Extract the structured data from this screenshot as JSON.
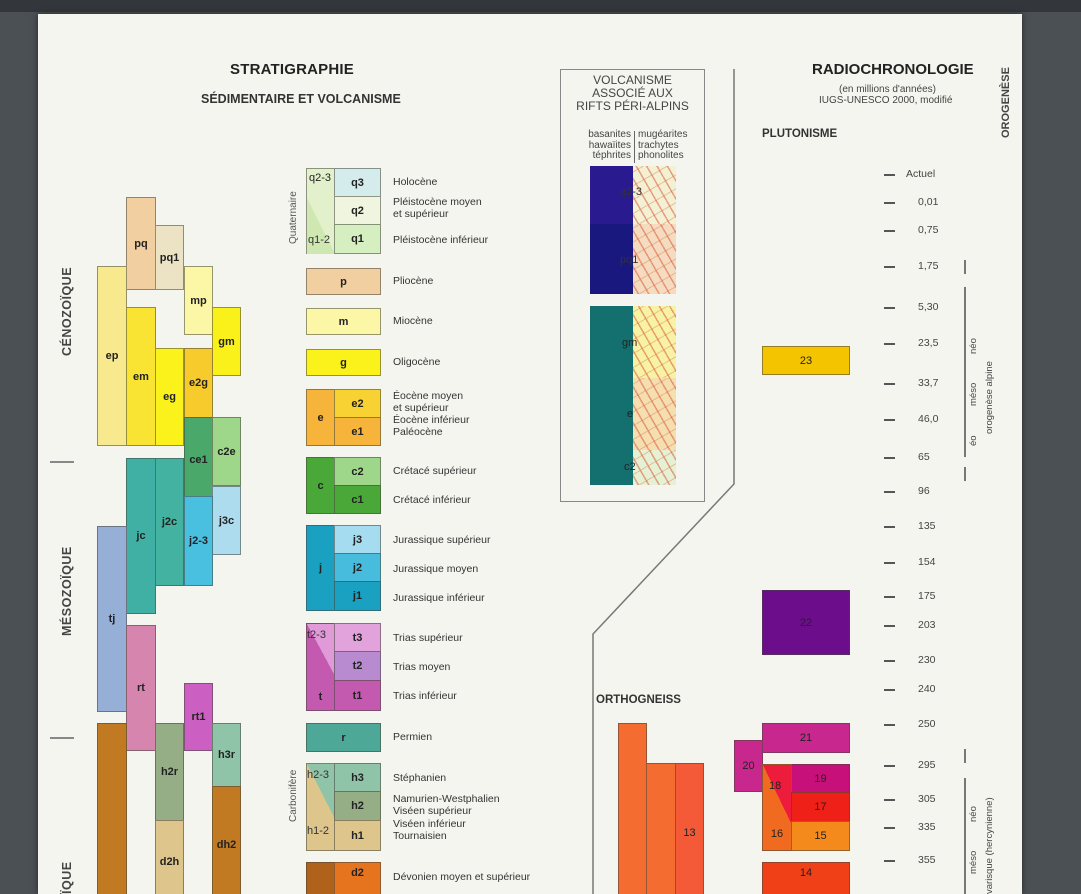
{
  "header": {
    "title": "STRATIGRAPHIE",
    "subtitle": "SÉDIMENTAIRE ET VOLCANISME"
  },
  "eras": {
    "cenozoic": "CÉNOZOÏQUE",
    "mesozoic": "MÉSOZOÏQUE",
    "paleozoic_partial": "ÏQUE"
  },
  "columns": [
    {
      "code": "pq",
      "color": "#f2cfa0"
    },
    {
      "code": "pq1",
      "color": "#ece2c4"
    },
    {
      "code": "ep",
      "color": "#f8e88e"
    },
    {
      "code": "mp",
      "color": "#fbf7a6"
    },
    {
      "code": "em",
      "color": "#f9e434"
    },
    {
      "code": "gm",
      "color": "#fbf11a"
    },
    {
      "code": "eg",
      "color": "#fbf21c"
    },
    {
      "code": "e2g",
      "color": "#f6cb2b"
    },
    {
      "code": "ce1",
      "color": "#4aa86a"
    },
    {
      "code": "c2e",
      "color": "#9ed68a"
    },
    {
      "code": "jc",
      "color": "#40b0a4"
    },
    {
      "code": "j2c",
      "color": "#44b2a0"
    },
    {
      "code": "j3c",
      "color": "#acdcee"
    },
    {
      "code": "j2-3",
      "color": "#4ac0e0"
    },
    {
      "code": "tj",
      "color": "#96afd6"
    },
    {
      "code": "rt",
      "color": "#d585ae"
    },
    {
      "code": "rt1",
      "color": "#cc5fc2"
    },
    {
      "code": "h3r",
      "color": "#8fc4a8"
    },
    {
      "code": "h2r",
      "color": "#96ae86"
    },
    {
      "code": "dh2",
      "color": "#c17a22"
    },
    {
      "code": "d2h",
      "color": "#ddc58c"
    }
  ],
  "legend": {
    "quaternary_label": "Quaternaire",
    "carboniferous_label": "Carbonifère",
    "items": [
      {
        "code": "q3",
        "group": "q2-3",
        "label": "Holocène"
      },
      {
        "code": "q2",
        "label": "Pléistocène moyen\net supérieur"
      },
      {
        "code": "q1",
        "group": "q1-2",
        "label": "Pléistocène inférieur"
      },
      {
        "code": "p",
        "label": "Pliocène"
      },
      {
        "code": "m",
        "label": "Miocène"
      },
      {
        "code": "g",
        "label": "Oligocène"
      },
      {
        "code": "e2",
        "group": "e",
        "label": "Éocène moyen\net supérieur"
      },
      {
        "code": "e1",
        "label": "Éocène inférieur\nPaléocène"
      },
      {
        "code": "c2",
        "group": "c",
        "label": "Crétacé supérieur"
      },
      {
        "code": "c1",
        "label": "Crétacé inférieur"
      },
      {
        "code": "j3",
        "group": "j",
        "label": "Jurassique supérieur"
      },
      {
        "code": "j2",
        "label": "Jurassique moyen"
      },
      {
        "code": "j1",
        "label": "Jurassique inférieur"
      },
      {
        "code": "t3",
        "group": "t2-3",
        "label": "Trias supérieur"
      },
      {
        "code": "t2",
        "label": "Trias moyen"
      },
      {
        "code": "t1",
        "group": "t",
        "label": "Trias inférieur"
      },
      {
        "code": "r",
        "label": "Permien"
      },
      {
        "code": "h3",
        "group": "h2-3",
        "label": "Stéphanien"
      },
      {
        "code": "h2",
        "label": "Namurien-Westphalien\nViséen supérieur"
      },
      {
        "code": "h1",
        "group": "h1-2",
        "label": "Viséen inférieur\nTournaisien"
      },
      {
        "code": "d2",
        "label": "Dévonien moyen et supérieur"
      }
    ]
  },
  "volcanism": {
    "title": "VOLCANISME\nASSOCIÉ AUX\nRIFTS PÉRI-ALPINS",
    "col_left": "basanites\nhawaïites\ntéphrites",
    "col_right": "mugéarites\ntrachytes\nphonolites",
    "blocks": [
      "q2-3",
      "pq1",
      "gm",
      "e",
      "c2"
    ]
  },
  "radiochronology": {
    "title": "RADIOCHRONOLOGIE",
    "subtitle1": "(en millions d'années)",
    "subtitle2": "IUGS-UNESCO 2000, modifié",
    "orogenese": "OROGENÈSE",
    "plutonism": "PLUTONISME",
    "orthogneiss": "ORTHOGNEISS",
    "ticks": [
      "Actuel",
      "0,01",
      "0,75",
      "1,75",
      "5,30",
      "23,5",
      "33,7",
      "46,0",
      "65",
      "96",
      "135",
      "154",
      "175",
      "203",
      "230",
      "240",
      "250",
      "295",
      "305",
      "335",
      "355"
    ],
    "alpine": {
      "label": "orogenèse alpine",
      "neo": "néo",
      "meso": "méso",
      "eo": "éo"
    },
    "variscan": {
      "label": "varisque (hercynienne)",
      "neo": "néo",
      "meso": "méso"
    },
    "plutons": [
      "23",
      "22",
      "21",
      "20",
      "19",
      "18",
      "17",
      "16",
      "15",
      "14",
      "13"
    ]
  }
}
